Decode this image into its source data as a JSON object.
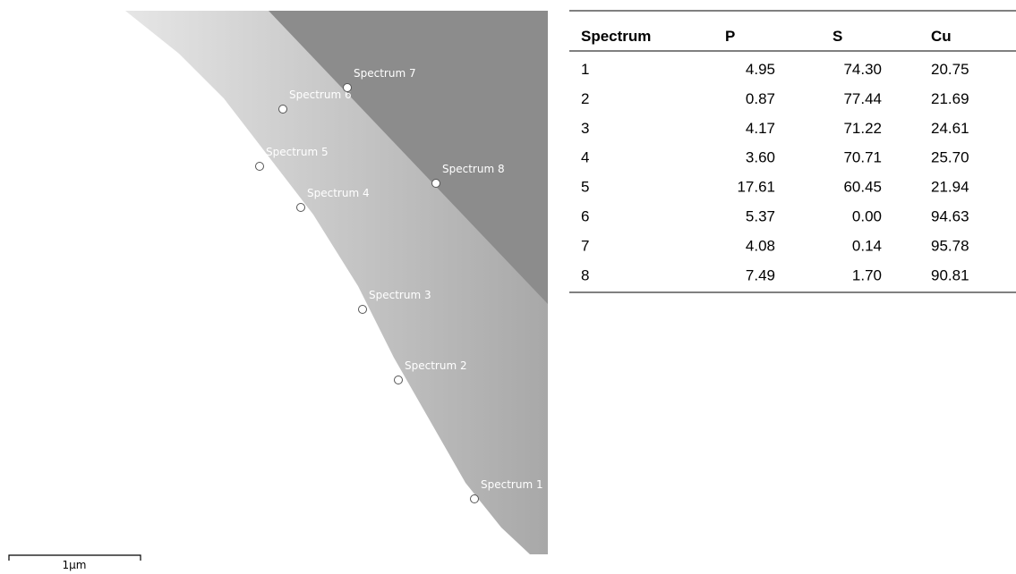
{
  "image": {
    "spectra": [
      {
        "label": "Spectrum 1"
      },
      {
        "label": "Spectrum 2"
      },
      {
        "label": "Spectrum 3"
      },
      {
        "label": "Spectrum 4"
      },
      {
        "label": "Spectrum 5"
      },
      {
        "label": "Spectrum 6"
      },
      {
        "label": "Spectrum 7"
      },
      {
        "label": "Spectrum 8"
      }
    ],
    "scale_bar": "1μm"
  },
  "table": {
    "header": [
      "Spectrum",
      "P",
      "S",
      "Cu"
    ],
    "rows": [
      [
        "1",
        "4.95",
        "74.30",
        "20.75"
      ],
      [
        "2",
        "0.87",
        "77.44",
        "21.69"
      ],
      [
        "3",
        "4.17",
        "71.22",
        "24.61"
      ],
      [
        "4",
        "3.60",
        "70.71",
        "25.70"
      ],
      [
        "5",
        "17.61",
        "60.45",
        "21.94"
      ],
      [
        "6",
        "5.37",
        "0.00",
        "94.63"
      ],
      [
        "7",
        "4.08",
        "0.14",
        "95.78"
      ],
      [
        "8",
        "7.49",
        "1.70",
        "90.81"
      ]
    ]
  }
}
